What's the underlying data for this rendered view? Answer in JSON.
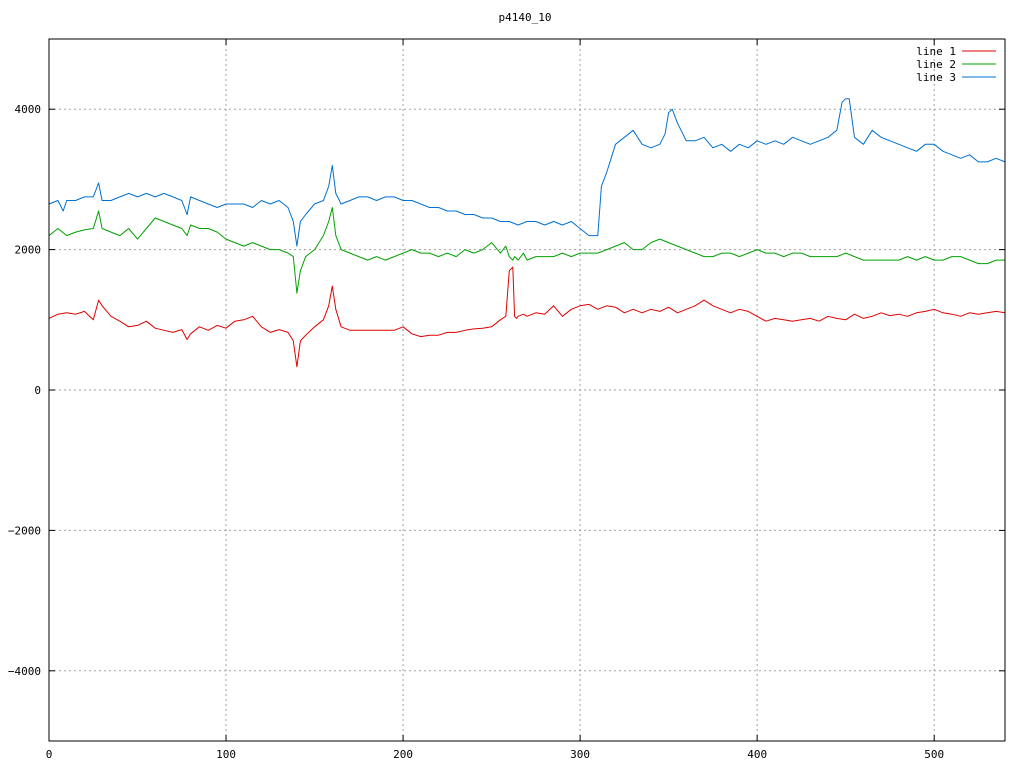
{
  "chart_data": {
    "type": "line",
    "title": "p4140_10",
    "xlabel": "",
    "ylabel": "",
    "xlim": [
      0,
      540
    ],
    "ylim": [
      -5000,
      5000
    ],
    "xticks": [
      0,
      100,
      200,
      300,
      400,
      500
    ],
    "yticks": [
      -4000,
      -2000,
      0,
      2000,
      4000
    ],
    "tick_labels": {
      "x": [
        "0",
        "100",
        "200",
        "300",
        "400",
        "500"
      ],
      "y": [
        "−4000",
        "−2000",
        "0",
        "2000",
        "4000"
      ]
    },
    "grid": true,
    "legend_position": "top-right",
    "series": [
      {
        "name": "line 1",
        "color": "#e00000",
        "x": [
          0,
          5,
          10,
          15,
          20,
          25,
          28,
          30,
          35,
          40,
          45,
          50,
          55,
          60,
          65,
          70,
          75,
          78,
          80,
          85,
          90,
          95,
          100,
          105,
          110,
          115,
          120,
          125,
          130,
          135,
          138,
          140,
          142,
          145,
          150,
          155,
          158,
          160,
          162,
          165,
          170,
          175,
          180,
          185,
          190,
          195,
          200,
          205,
          210,
          215,
          220,
          225,
          230,
          235,
          240,
          245,
          250,
          255,
          258,
          260,
          262,
          263,
          264,
          265,
          268,
          270,
          275,
          280,
          285,
          290,
          295,
          300,
          305,
          310,
          315,
          320,
          325,
          330,
          335,
          340,
          345,
          350,
          355,
          360,
          365,
          370,
          375,
          380,
          385,
          390,
          395,
          400,
          405,
          410,
          415,
          420,
          425,
          430,
          435,
          440,
          445,
          450,
          455,
          460,
          465,
          470,
          475,
          480,
          485,
          490,
          495,
          500,
          505,
          510,
          515,
          520,
          525,
          530,
          535,
          540
        ],
        "y": [
          1020,
          1080,
          1100,
          1080,
          1120,
          1000,
          1280,
          1200,
          1050,
          980,
          900,
          920,
          980,
          880,
          850,
          820,
          860,
          720,
          800,
          900,
          850,
          920,
          880,
          980,
          1000,
          1050,
          900,
          820,
          860,
          820,
          700,
          330,
          700,
          780,
          900,
          1000,
          1200,
          1480,
          1150,
          900,
          850,
          850,
          850,
          850,
          850,
          850,
          900,
          800,
          760,
          780,
          780,
          820,
          820,
          850,
          870,
          880,
          900,
          1000,
          1050,
          1700,
          1750,
          1050,
          1020,
          1050,
          1080,
          1050,
          1100,
          1080,
          1200,
          1050,
          1150,
          1200,
          1220,
          1150,
          1200,
          1180,
          1100,
          1150,
          1100,
          1150,
          1120,
          1180,
          1100,
          1150,
          1200,
          1280,
          1200,
          1150,
          1100,
          1150,
          1120,
          1050,
          980,
          1020,
          1000,
          980,
          1000,
          1020,
          980,
          1050,
          1020,
          1000,
          1080,
          1020,
          1050,
          1100,
          1060,
          1080,
          1050,
          1100,
          1120,
          1150,
          1100,
          1080,
          1050,
          1100,
          1080,
          1100,
          1120,
          1100
        ]
      },
      {
        "name": "line 2",
        "color": "#00a000",
        "x": [
          0,
          5,
          10,
          15,
          20,
          25,
          28,
          30,
          35,
          40,
          45,
          50,
          55,
          60,
          65,
          70,
          75,
          78,
          80,
          85,
          90,
          95,
          100,
          105,
          110,
          115,
          120,
          125,
          130,
          135,
          138,
          140,
          142,
          145,
          150,
          155,
          158,
          160,
          162,
          165,
          170,
          175,
          180,
          185,
          190,
          195,
          200,
          205,
          210,
          215,
          220,
          225,
          230,
          235,
          240,
          245,
          250,
          255,
          258,
          260,
          262,
          263,
          265,
          268,
          270,
          275,
          280,
          285,
          290,
          295,
          300,
          305,
          310,
          315,
          320,
          325,
          330,
          335,
          340,
          345,
          350,
          355,
          360,
          365,
          370,
          375,
          380,
          385,
          390,
          395,
          400,
          405,
          410,
          415,
          420,
          425,
          430,
          435,
          440,
          445,
          450,
          455,
          460,
          465,
          470,
          475,
          480,
          485,
          490,
          495,
          500,
          505,
          510,
          515,
          520,
          525,
          530,
          535,
          540
        ],
        "y": [
          2200,
          2300,
          2200,
          2250,
          2280,
          2300,
          2550,
          2300,
          2250,
          2200,
          2300,
          2150,
          2300,
          2450,
          2400,
          2350,
          2300,
          2200,
          2350,
          2300,
          2300,
          2250,
          2150,
          2100,
          2050,
          2100,
          2050,
          2000,
          2000,
          1950,
          1900,
          1380,
          1700,
          1900,
          2000,
          2200,
          2400,
          2600,
          2200,
          2000,
          1950,
          1900,
          1850,
          1900,
          1850,
          1900,
          1950,
          2000,
          1950,
          1950,
          1900,
          1950,
          1900,
          2000,
          1950,
          2000,
          2100,
          1950,
          2050,
          1900,
          1850,
          1900,
          1850,
          1950,
          1850,
          1900,
          1900,
          1900,
          1950,
          1900,
          1950,
          1950,
          1950,
          2000,
          2050,
          2100,
          2000,
          2000,
          2100,
          2150,
          2100,
          2050,
          2000,
          1950,
          1900,
          1900,
          1950,
          1950,
          1900,
          1950,
          2000,
          1950,
          1950,
          1900,
          1950,
          1950,
          1900,
          1900,
          1900,
          1900,
          1950,
          1900,
          1850,
          1850,
          1850,
          1850,
          1850,
          1900,
          1850,
          1900,
          1850,
          1850,
          1900,
          1900,
          1850,
          1800,
          1800,
          1850,
          1850
        ]
      },
      {
        "name": "line 3",
        "color": "#0070d0",
        "x": [
          0,
          5,
          8,
          10,
          15,
          20,
          25,
          28,
          30,
          35,
          40,
          45,
          50,
          55,
          60,
          65,
          70,
          75,
          78,
          80,
          85,
          90,
          95,
          100,
          105,
          110,
          115,
          120,
          125,
          130,
          135,
          138,
          140,
          142,
          145,
          150,
          155,
          158,
          160,
          162,
          165,
          170,
          175,
          180,
          185,
          190,
          195,
          200,
          205,
          210,
          215,
          220,
          225,
          230,
          235,
          240,
          245,
          250,
          255,
          260,
          265,
          270,
          275,
          280,
          285,
          290,
          295,
          300,
          305,
          308,
          310,
          312,
          315,
          320,
          325,
          330,
          335,
          340,
          345,
          348,
          350,
          352,
          355,
          360,
          365,
          370,
          375,
          380,
          385,
          390,
          395,
          400,
          405,
          410,
          415,
          420,
          425,
          430,
          435,
          440,
          445,
          448,
          450,
          452,
          455,
          460,
          465,
          470,
          475,
          480,
          485,
          490,
          495,
          500,
          505,
          510,
          515,
          520,
          525,
          530,
          535,
          540
        ],
        "y": [
          2650,
          2700,
          2550,
          2700,
          2700,
          2750,
          2750,
          2950,
          2700,
          2700,
          2750,
          2800,
          2750,
          2800,
          2750,
          2800,
          2750,
          2700,
          2500,
          2750,
          2700,
          2650,
          2600,
          2650,
          2650,
          2650,
          2600,
          2700,
          2650,
          2700,
          2600,
          2400,
          2050,
          2400,
          2500,
          2650,
          2700,
          2900,
          3200,
          2800,
          2650,
          2700,
          2750,
          2750,
          2700,
          2750,
          2750,
          2700,
          2700,
          2650,
          2600,
          2600,
          2550,
          2550,
          2500,
          2500,
          2450,
          2450,
          2400,
          2400,
          2350,
          2400,
          2400,
          2350,
          2400,
          2350,
          2400,
          2300,
          2200,
          2200,
          2200,
          2900,
          3100,
          3500,
          3600,
          3700,
          3500,
          3450,
          3500,
          3650,
          3950,
          4000,
          3800,
          3550,
          3550,
          3600,
          3450,
          3500,
          3400,
          3500,
          3450,
          3550,
          3500,
          3550,
          3500,
          3600,
          3550,
          3500,
          3550,
          3600,
          3700,
          4100,
          4150,
          4150,
          3600,
          3500,
          3700,
          3600,
          3550,
          3500,
          3450,
          3400,
          3500,
          3500,
          3400,
          3350,
          3300,
          3350,
          3250,
          3250,
          3300,
          3250
        ]
      }
    ]
  }
}
